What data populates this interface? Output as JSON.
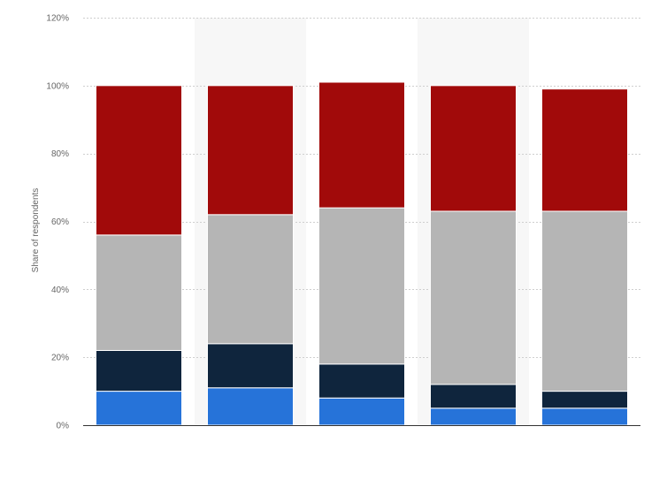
{
  "chart_data": {
    "type": "bar",
    "stacked": true,
    "categories": [
      "",
      "",
      "",
      "",
      ""
    ],
    "series": [
      {
        "color": "#2673d9",
        "values": [
          10,
          11,
          8,
          5,
          5
        ]
      },
      {
        "color": "#0f253d",
        "values": [
          12,
          13,
          10,
          7,
          5
        ]
      },
      {
        "color": "#b5b5b5",
        "values": [
          34,
          38,
          46,
          51,
          53
        ]
      },
      {
        "color": "#a10a0a",
        "values": [
          44,
          38,
          37,
          37,
          36
        ]
      }
    ],
    "title": "",
    "xlabel": "",
    "ylabel": "Share of respondents",
    "ylim": [
      0,
      120
    ],
    "yticks": [
      0,
      20,
      40,
      60,
      80,
      100,
      120
    ],
    "ytick_labels": [
      "0%",
      "20%",
      "40%",
      "60%",
      "80%",
      "100%",
      "120%"
    ],
    "grid": true,
    "legend": "none",
    "alternating_column_shading": true
  }
}
